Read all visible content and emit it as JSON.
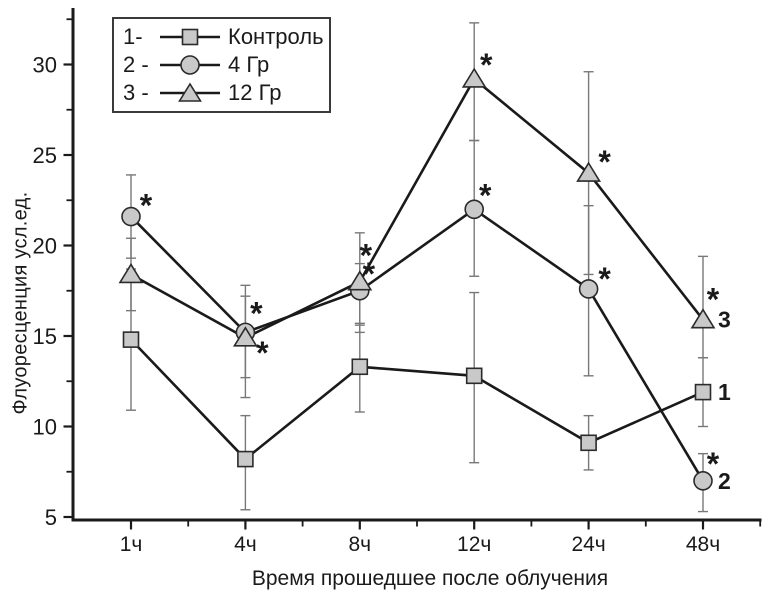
{
  "figure": {
    "background": "#ffffff"
  },
  "colors": {
    "line": "#1a1a1a",
    "error_bar": "#787878",
    "marker_fill": "#c9c9c9",
    "marker_stroke": "#2b2b2b",
    "text": "#1a1a1a",
    "legend_border": "#3a3a3a"
  },
  "legend": {
    "items": [
      {
        "prefix": "1-",
        "label": "Контроль",
        "marker": "square"
      },
      {
        "prefix": "2 -",
        "label": "4 Гр",
        "marker": "circle"
      },
      {
        "prefix": "3 -",
        "label": "12 Гр",
        "marker": "triangle"
      }
    ]
  },
  "chart_data": {
    "type": "line",
    "title": "",
    "xlabel": "Время прошедшее после облучения",
    "ylabel": "Флуоресценция усл.ед.",
    "categories": [
      "1ч",
      "4ч",
      "8ч",
      "12ч",
      "24ч",
      "48ч"
    ],
    "ylim": [
      5,
      32.5
    ],
    "yticks": [
      5,
      10,
      15,
      20,
      25,
      30
    ],
    "yticks_minor": [
      7.5,
      12.5,
      17.5,
      22.5,
      27.5,
      32.5
    ],
    "grid": false,
    "legend_position": "top-left-inside",
    "error_bars": true,
    "significance_symbol": "*",
    "series": [
      {
        "name": "Контроль",
        "end_label": "1",
        "marker": "square",
        "values": [
          14.8,
          8.2,
          13.3,
          12.8,
          9.1,
          11.9
        ],
        "err_up": [
          3.9,
          2.4,
          2.4,
          4.6,
          1.5,
          1.9
        ],
        "err_down": [
          3.9,
          2.8,
          2.5,
          4.8,
          1.5,
          1.9
        ],
        "stars": [
          null,
          null,
          null,
          null,
          null,
          null
        ]
      },
      {
        "name": "4 Гр",
        "end_label": "2",
        "marker": "circle",
        "values": [
          21.6,
          15.2,
          17.5,
          22.0,
          17.6,
          7.0
        ],
        "err_up": [
          2.3,
          2.6,
          1.5,
          3.8,
          4.6,
          1.5
        ],
        "err_down": [
          2.3,
          2.5,
          1.9,
          3.7,
          4.8,
          1.7
        ],
        "stars": [
          [
            15,
            0
          ],
          [
            11,
            -8
          ],
          [
            9,
            -6
          ],
          [
            11,
            -3
          ],
          [
            16,
            1
          ],
          [
            10,
            -6
          ]
        ]
      },
      {
        "name": "12 Гр",
        "end_label": "3",
        "marker": "triangle",
        "values": [
          18.4,
          14.9,
          18.0,
          29.2,
          24.0,
          15.9
        ],
        "err_up": [
          2.0,
          2.3,
          2.7,
          3.1,
          5.6,
          3.5
        ],
        "err_down": [
          2.0,
          3.3,
          2.8,
          3.4,
          5.6,
          2.1
        ],
        "stars": [
          null,
          [
            17,
            26
          ],
          [
            6,
            -15
          ],
          [
            12,
            -3
          ],
          [
            16,
            0
          ],
          [
            10,
            -9
          ]
        ]
      }
    ]
  }
}
